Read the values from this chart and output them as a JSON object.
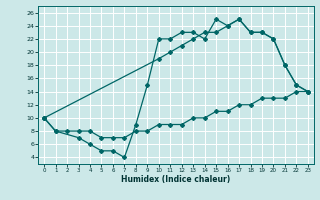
{
  "title": "",
  "xlabel": "Humidex (Indice chaleur)",
  "bg_color": "#cce8e8",
  "grid_color": "#ffffff",
  "line_color": "#006666",
  "xlim": [
    -0.5,
    23.5
  ],
  "ylim": [
    3,
    27
  ],
  "xticks": [
    0,
    1,
    2,
    3,
    4,
    5,
    6,
    7,
    8,
    9,
    10,
    11,
    12,
    13,
    14,
    15,
    16,
    17,
    18,
    19,
    20,
    21,
    22,
    23
  ],
  "yticks": [
    4,
    6,
    8,
    10,
    12,
    14,
    16,
    18,
    20,
    22,
    24,
    26
  ],
  "line1_x": [
    0,
    1,
    3,
    4,
    5,
    6,
    7,
    8,
    9,
    10,
    11,
    12,
    13,
    14,
    15,
    16,
    17,
    18,
    19,
    20,
    21,
    22,
    23
  ],
  "line1_y": [
    10,
    8,
    7,
    6,
    5,
    5,
    4,
    9,
    15,
    22,
    22,
    23,
    23,
    22,
    25,
    24,
    25,
    23,
    23,
    22,
    18,
    15,
    14
  ],
  "line2_x": [
    0,
    1,
    2,
    3,
    4,
    5,
    6,
    7,
    8,
    9,
    10,
    11,
    12,
    13,
    14,
    15,
    16,
    17,
    18,
    19,
    20,
    21,
    22,
    23
  ],
  "line2_y": [
    10,
    8,
    8,
    8,
    8,
    7,
    7,
    7,
    8,
    8,
    9,
    9,
    9,
    10,
    10,
    11,
    11,
    12,
    12,
    13,
    13,
    13,
    14,
    14
  ],
  "line3_x": [
    0,
    10,
    11,
    12,
    13,
    14,
    15,
    16,
    17,
    18,
    19,
    20,
    21,
    22,
    23
  ],
  "line3_y": [
    10,
    19,
    20,
    21,
    22,
    23,
    23,
    24,
    25,
    23,
    23,
    22,
    18,
    15,
    14
  ]
}
